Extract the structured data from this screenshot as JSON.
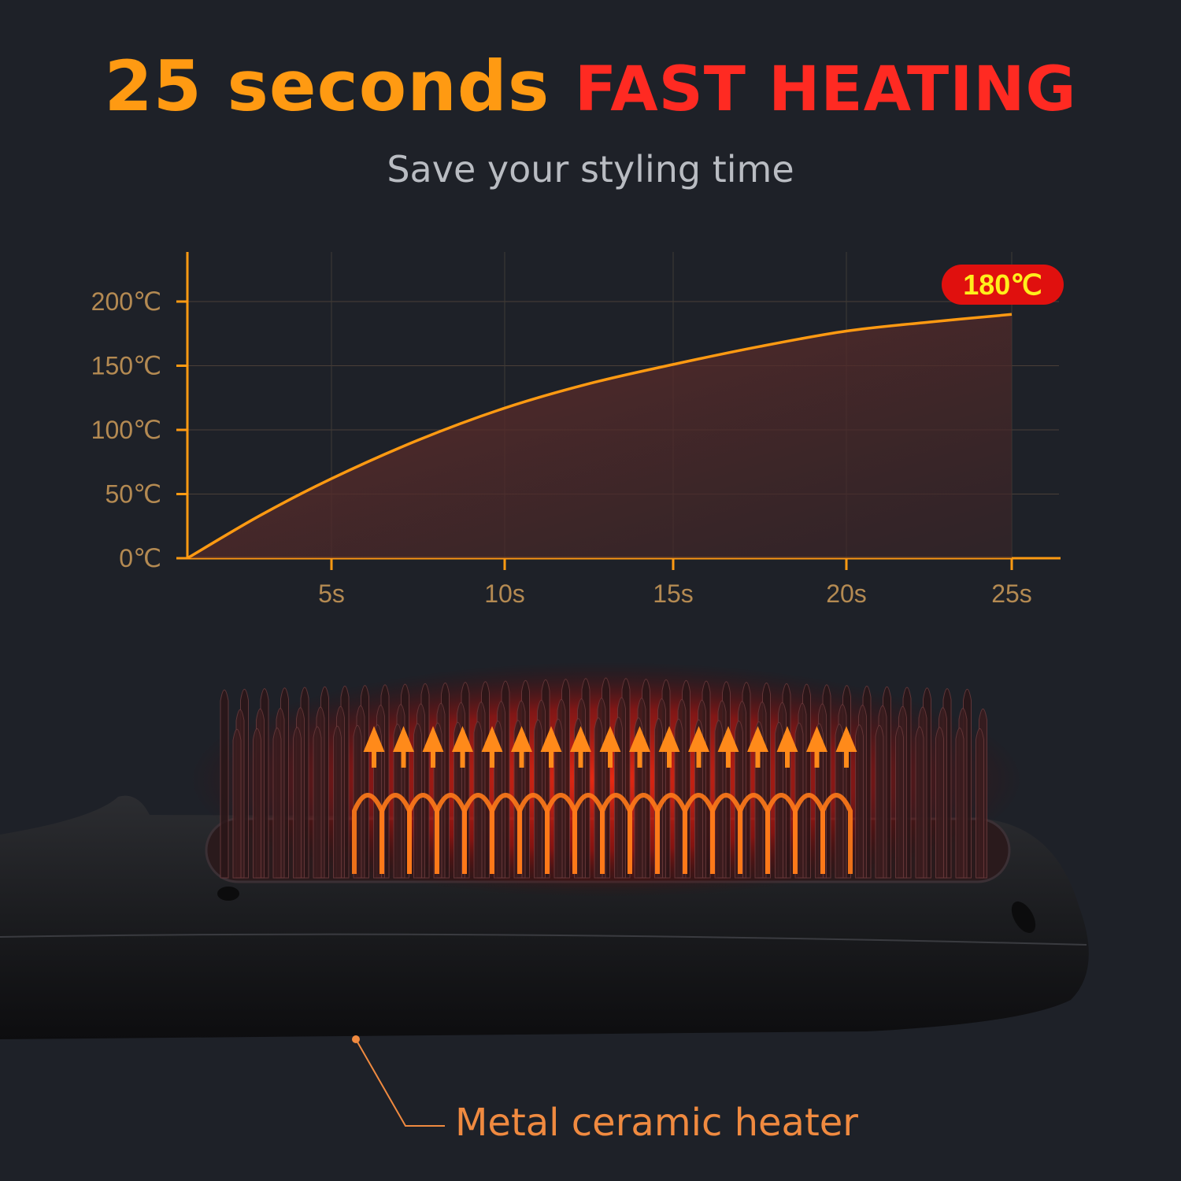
{
  "headline": {
    "part1": "25 seconds",
    "part2": "FAST HEATING"
  },
  "subtitle": "Save your styling time",
  "badge": "180℃",
  "caption": "Metal ceramic heater",
  "colors": {
    "orange": "#ff9a12",
    "red": "#ff2a22",
    "background": "#1e2128",
    "badge": "#e0100e",
    "badge_text": "#ffef1c"
  },
  "chart_data": {
    "type": "area",
    "title": "",
    "xlabel": "",
    "ylabel": "",
    "x_ticks": [
      "5s",
      "10s",
      "15s",
      "20s",
      "25s"
    ],
    "y_ticks": [
      "0℃",
      "50℃",
      "100℃",
      "150℃",
      "200℃"
    ],
    "xlim": [
      0,
      25
    ],
    "ylim": [
      0,
      200
    ],
    "grid": true,
    "series": [
      {
        "x": [
          0,
          2.5,
          5,
          7.5,
          10,
          12.5,
          15,
          17.5,
          20,
          22.5,
          25
        ],
        "values": [
          0,
          33,
          62,
          92,
          117,
          136,
          151,
          165,
          177,
          184,
          190
        ]
      }
    ],
    "annotation": "180℃"
  }
}
